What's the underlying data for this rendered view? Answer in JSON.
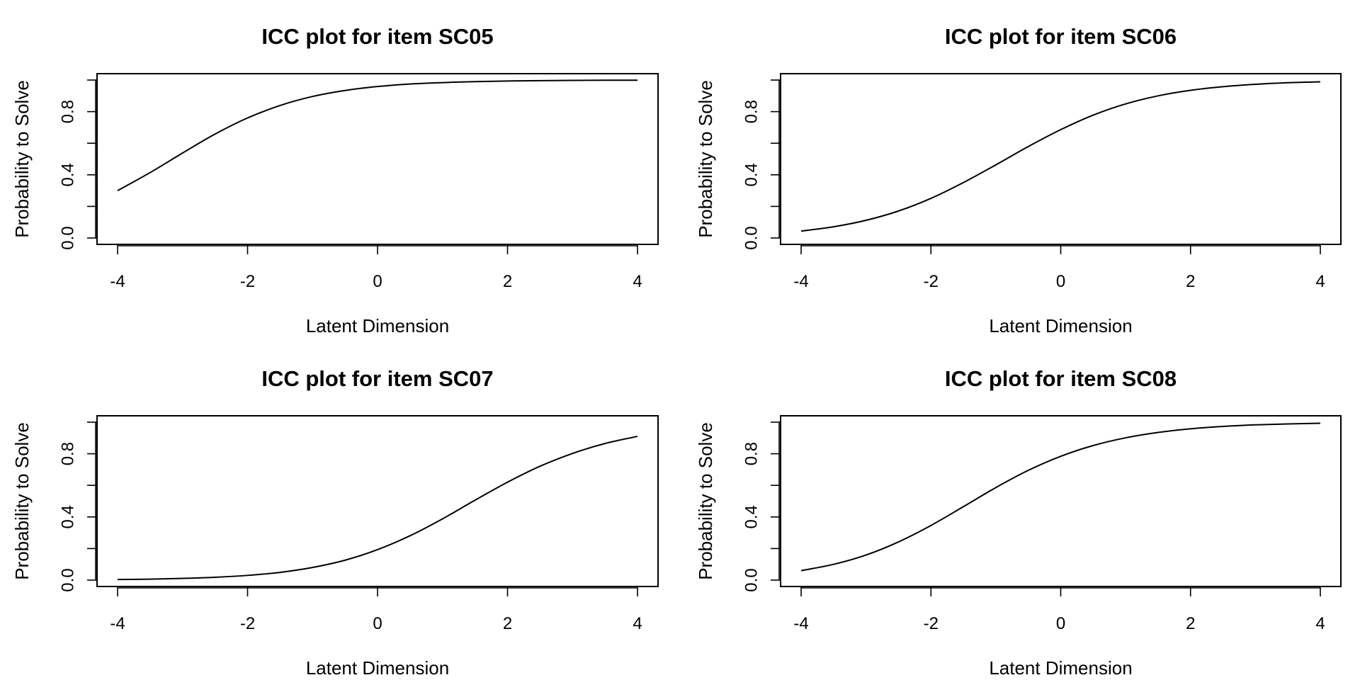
{
  "chart_data": [
    {
      "type": "line",
      "title": "ICC plot for item  SC05",
      "xlabel": "Latent Dimension",
      "ylabel": "Probability to Solve",
      "xlim": [
        -4,
        4
      ],
      "ylim": [
        0,
        1
      ],
      "xticks": [
        "-4",
        "-2",
        "0",
        "2",
        "4"
      ],
      "yticks": [
        "0.0",
        "0.4",
        "0.8"
      ],
      "grid": false,
      "x": [
        -4,
        -3.5,
        -3,
        -2.5,
        -2,
        -1.5,
        -1,
        -0.5,
        0,
        0.5,
        1,
        1.5,
        2,
        2.5,
        3,
        3.5,
        4
      ],
      "y": [
        0.3,
        0.414,
        0.538,
        0.658,
        0.76,
        0.839,
        0.896,
        0.934,
        0.959,
        0.975,
        0.984,
        0.99,
        0.994,
        0.996,
        0.998,
        0.999,
        0.999
      ]
    },
    {
      "type": "line",
      "title": "ICC plot for item  SC06",
      "xlabel": "Latent Dimension",
      "ylabel": "Probability to Solve",
      "xlim": [
        -4,
        4
      ],
      "ylim": [
        0,
        1
      ],
      "xticks": [
        "-4",
        "-2",
        "0",
        "2",
        "4"
      ],
      "yticks": [
        "0.0",
        "0.4",
        "0.8"
      ],
      "grid": false,
      "x": [
        -4,
        -3.5,
        -3,
        -2.5,
        -2,
        -1.5,
        -1,
        -0.5,
        0,
        0.5,
        1,
        1.5,
        2,
        2.5,
        3,
        3.5,
        4
      ],
      "y": [
        0.044,
        0.071,
        0.112,
        0.171,
        0.251,
        0.351,
        0.463,
        0.579,
        0.686,
        0.778,
        0.849,
        0.9,
        0.935,
        0.958,
        0.973,
        0.983,
        0.989
      ]
    },
    {
      "type": "line",
      "title": "ICC plot for item  SC07",
      "xlabel": "Latent Dimension",
      "ylabel": "Probability to Solve",
      "xlim": [
        -4,
        4
      ],
      "ylim": [
        0,
        1
      ],
      "xticks": [
        "-4",
        "-2",
        "0",
        "2",
        "4"
      ],
      "yticks": [
        "0.0",
        "0.4",
        "0.8"
      ],
      "grid": false,
      "x": [
        -4,
        -3.5,
        -3,
        -2.5,
        -2,
        -1.5,
        -1,
        -0.5,
        0,
        0.5,
        1,
        1.5,
        2,
        2.5,
        3,
        3.5,
        4
      ],
      "y": [
        0.004,
        0.006,
        0.011,
        0.018,
        0.03,
        0.049,
        0.08,
        0.126,
        0.193,
        0.281,
        0.388,
        0.506,
        0.62,
        0.721,
        0.802,
        0.865,
        0.91
      ]
    },
    {
      "type": "line",
      "title": "ICC plot for item  SC08",
      "xlabel": "Latent Dimension",
      "ylabel": "Probability to Solve",
      "xlim": [
        -4,
        4
      ],
      "ylim": [
        0,
        1
      ],
      "xticks": [
        "-4",
        "-2",
        "0",
        "2",
        "4"
      ],
      "yticks": [
        "0.0",
        "0.4",
        "0.8"
      ],
      "grid": false,
      "x": [
        -4,
        -3.5,
        -3,
        -2.5,
        -2,
        -1.5,
        -1,
        -0.5,
        0,
        0.5,
        1,
        1.5,
        2,
        2.5,
        3,
        3.5,
        4
      ],
      "y": [
        0.06,
        0.1,
        0.159,
        0.242,
        0.346,
        0.465,
        0.586,
        0.695,
        0.784,
        0.852,
        0.901,
        0.935,
        0.958,
        0.973,
        0.983,
        0.989,
        0.993
      ]
    }
  ]
}
